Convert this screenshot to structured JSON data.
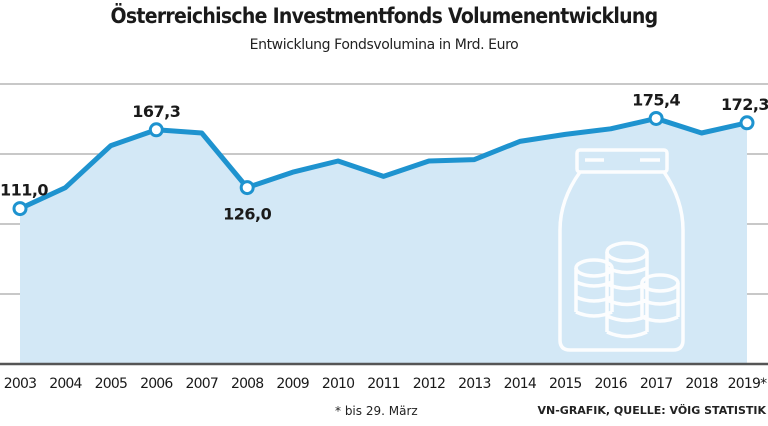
{
  "title": "Österreichische Investmentfonds Volumenentwicklung",
  "subtitle": "Entwicklung Fondsvolumina in Mrd. Euro",
  "footnote": "* bis 29. März",
  "source": "VN-GRAFIK, QUELLE: VÖIG STATISTIK",
  "colors": {
    "line": "#1e93cf",
    "fill": "#d3e8f6",
    "grid": "#a8a8a8",
    "axis": "#555555"
  },
  "illustration_icon": "jar-with-coins-icon",
  "chart_data": {
    "type": "area",
    "categories": [
      "2003",
      "2004",
      "2005",
      "2006",
      "2007",
      "2008",
      "2009",
      "2010",
      "2011",
      "2012",
      "2013",
      "2014",
      "2015",
      "2016",
      "2017",
      "2018",
      "2019*"
    ],
    "values": [
      111.0,
      126,
      156,
      167.3,
      165,
      126.0,
      137,
      145,
      134,
      145,
      146,
      159,
      164,
      168,
      175.4,
      165,
      172.3
    ],
    "data_labels": [
      {
        "index": 0,
        "text": "111,0"
      },
      {
        "index": 3,
        "text": "167,3"
      },
      {
        "index": 5,
        "text": "126,0"
      },
      {
        "index": 14,
        "text": "175,4"
      },
      {
        "index": 16,
        "text": "172,3"
      }
    ],
    "ylim": [
      0,
      200
    ],
    "gridlines": [
      0,
      50,
      100,
      150,
      200
    ],
    "grid": true
  }
}
